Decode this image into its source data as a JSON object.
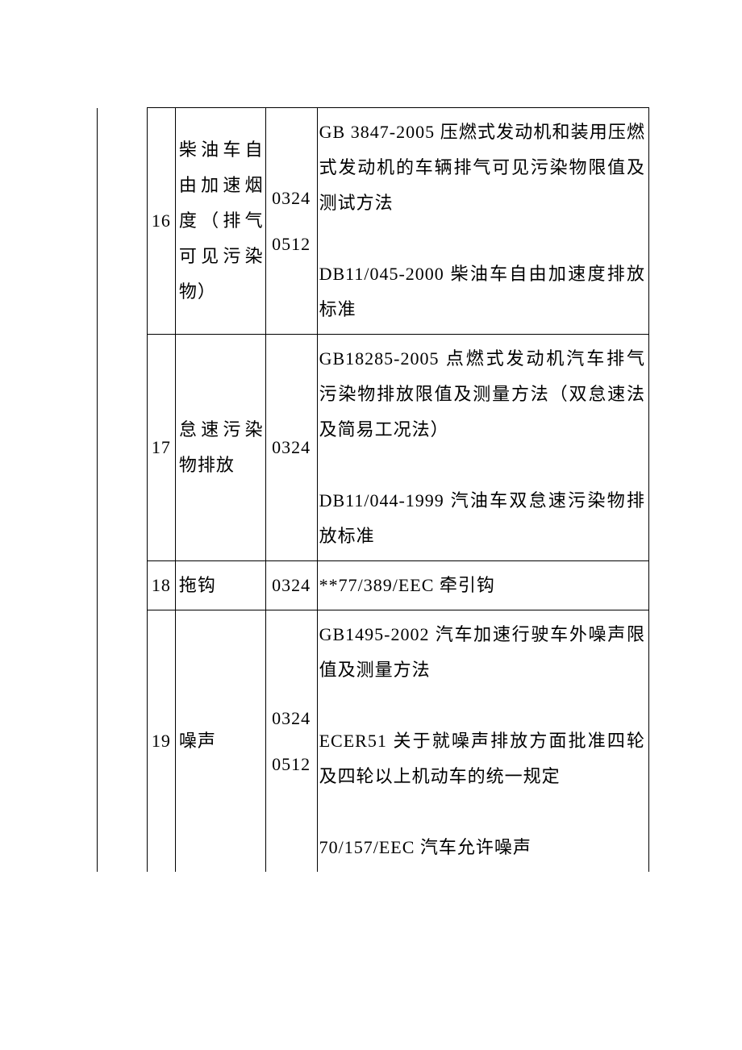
{
  "rows": [
    {
      "num": "16",
      "name": "柴油车自由加速烟度（排气可见污染物）",
      "code": "0324 0512",
      "desc": "GB 3847-2005 压燃式发动机和装用压燃式发动机的车辆排气可见污染物限值及测试方法\n\nDB11/045-2000 柴油车自由加速度排放标准"
    },
    {
      "num": "17",
      "name": "怠速污染物排放",
      "code": "0324",
      "desc": "GB18285-2005 点燃式发动机汽车排气污染物排放限值及测量方法（双怠速法及简易工况法）\n\nDB11/044-1999 汽油车双怠速污染物排放标准"
    },
    {
      "num": "18",
      "name": "拖钩",
      "code": "0324",
      "desc": "**77/389/EEC 牵引钩"
    },
    {
      "num": "19",
      "name": "噪声",
      "code": "0324 0512",
      "desc": "GB1495-2002 汽车加速行驶车外噪声限值及测量方法\n\nECER51 关于就噪声排放方面批准四轮及四轮以上机动车的统一规定\n\n70/157/EEC 汽车允许噪声"
    }
  ]
}
